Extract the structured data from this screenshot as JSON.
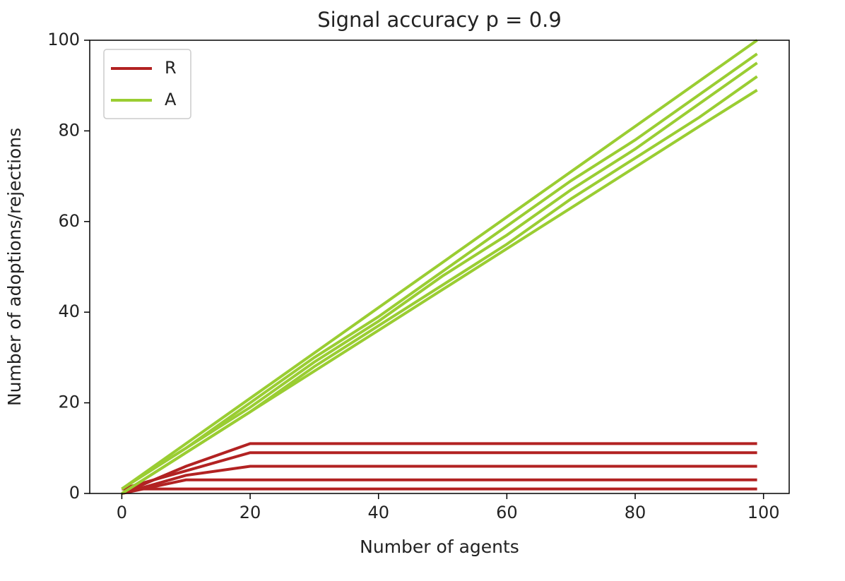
{
  "chart_data": {
    "type": "line",
    "title": "Signal accuracy p =  0.9",
    "x_label": "Number of agents",
    "y_label": "Number of adoptions/rejections",
    "x": [
      0,
      10,
      20,
      30,
      40,
      50,
      60,
      70,
      80,
      90,
      99
    ],
    "series": [
      {
        "name": "R",
        "color": "#b22222",
        "runs": [
          [
            1,
            1,
            1,
            1,
            1,
            1,
            1,
            1,
            1,
            1,
            1
          ],
          [
            0,
            3,
            3,
            3,
            3,
            3,
            3,
            3,
            3,
            3,
            3
          ],
          [
            0,
            4,
            6,
            6,
            6,
            6,
            6,
            6,
            6,
            6,
            6
          ],
          [
            1,
            5,
            9,
            9,
            9,
            9,
            9,
            9,
            9,
            9,
            9
          ],
          [
            0,
            6,
            11,
            11,
            11,
            11,
            11,
            11,
            11,
            11,
            11
          ]
        ]
      },
      {
        "name": "A",
        "color": "#9acd32",
        "runs": [
          [
            1,
            11,
            21,
            31,
            41,
            51,
            61,
            71,
            81,
            91,
            100
          ],
          [
            1,
            10,
            20,
            30,
            39,
            49,
            59,
            69,
            78,
            88,
            97
          ],
          [
            1,
            10,
            19,
            29,
            38,
            48,
            57,
            67,
            76,
            86,
            95
          ],
          [
            0,
            9,
            18,
            28,
            37,
            46,
            55,
            65,
            74,
            83,
            92
          ],
          [
            0,
            9,
            18,
            27,
            36,
            45,
            54,
            63,
            72,
            81,
            89
          ]
        ]
      }
    ],
    "xlim": [
      -5,
      104
    ],
    "ylim": [
      0,
      100
    ],
    "xticks": [
      0,
      20,
      40,
      60,
      80,
      100
    ],
    "yticks": [
      0,
      20,
      40,
      60,
      80,
      100
    ],
    "legend": "upper left"
  }
}
